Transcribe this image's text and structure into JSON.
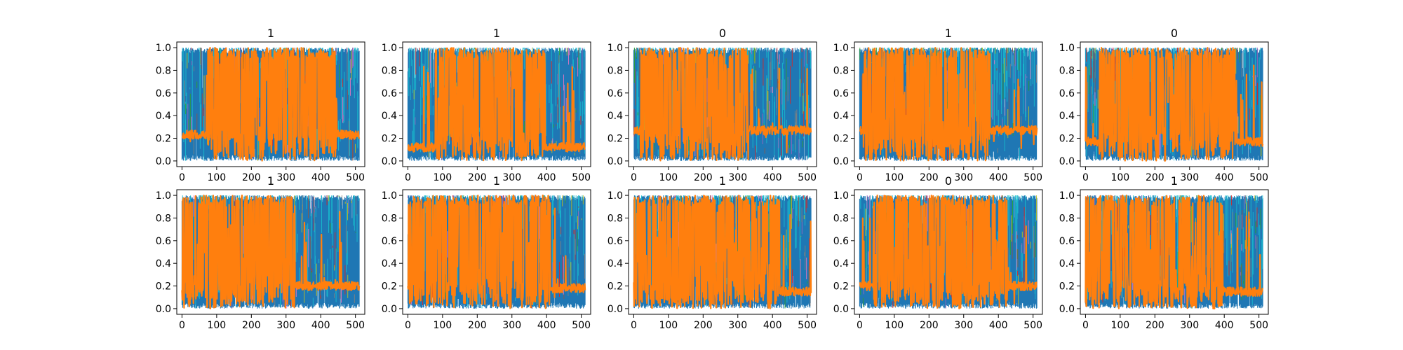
{
  "figure": {
    "colors": {
      "primary": "#1f77b4",
      "highlight": "#ff7f0e",
      "accents": [
        "#17becf",
        "#2ca02c",
        "#bcbd22",
        "#9467bd",
        "#e377c2",
        "#d62728",
        "#8c564b",
        "#7f7f7f"
      ]
    }
  },
  "chart_data": [
    {
      "type": "line",
      "title": "1",
      "xlim": [
        -15,
        527
      ],
      "ylim": [
        -0.05,
        1.05
      ],
      "xticks": [
        "0",
        "100",
        "200",
        "300",
        "400",
        "500"
      ],
      "yticks": [
        "0.0",
        "0.2",
        "0.4",
        "0.6",
        "0.8",
        "1.0"
      ],
      "series_count_estimate": 10,
      "x": [
        0,
        511
      ],
      "highlight_series": {
        "name": "",
        "dense_band": [
          75,
          445
        ],
        "baseline_level": 0.23
      }
    },
    {
      "type": "line",
      "title": "1",
      "xlim": [
        -15,
        527
      ],
      "ylim": [
        -0.05,
        1.05
      ],
      "xticks": [
        "0",
        "100",
        "200",
        "300",
        "400",
        "500"
      ],
      "yticks": [
        "0.0",
        "0.2",
        "0.4",
        "0.6",
        "0.8",
        "1.0"
      ],
      "series_count_estimate": 10,
      "x": [
        0,
        511
      ],
      "highlight_series": {
        "name": "",
        "dense_band": [
          80,
          395
        ],
        "baseline_level": 0.12
      }
    },
    {
      "type": "line",
      "title": "0",
      "xlim": [
        -15,
        527
      ],
      "ylim": [
        -0.05,
        1.05
      ],
      "xticks": [
        "0",
        "100",
        "200",
        "300",
        "400",
        "500"
      ],
      "yticks": [
        "0.0",
        "0.2",
        "0.4",
        "0.6",
        "0.8",
        "1.0"
      ],
      "series_count_estimate": 10,
      "x": [
        0,
        511
      ],
      "highlight_series": {
        "name": "",
        "dense_band": [
          20,
          330
        ],
        "baseline_level": 0.27
      }
    },
    {
      "type": "line",
      "title": "1",
      "xlim": [
        -15,
        527
      ],
      "ylim": [
        -0.05,
        1.05
      ],
      "xticks": [
        "0",
        "100",
        "200",
        "300",
        "400",
        "500"
      ],
      "yticks": [
        "0.0",
        "0.2",
        "0.4",
        "0.6",
        "0.8",
        "1.0"
      ],
      "series_count_estimate": 10,
      "x": [
        0,
        511
      ],
      "highlight_series": {
        "name": "",
        "dense_band": [
          10,
          375
        ],
        "baseline_level": 0.27
      }
    },
    {
      "type": "line",
      "title": "0",
      "xlim": [
        -15,
        527
      ],
      "ylim": [
        -0.05,
        1.05
      ],
      "xticks": [
        "0",
        "100",
        "200",
        "300",
        "400",
        "500"
      ],
      "yticks": [
        "0.0",
        "0.2",
        "0.4",
        "0.6",
        "0.8",
        "1.0"
      ],
      "series_count_estimate": 10,
      "x": [
        0,
        511
      ],
      "highlight_series": {
        "name": "",
        "dense_band": [
          40,
          430
        ],
        "baseline_level": 0.17
      }
    },
    {
      "type": "line",
      "title": "1",
      "xlim": [
        -15,
        527
      ],
      "ylim": [
        -0.05,
        1.05
      ],
      "xticks": [
        "0",
        "100",
        "200",
        "300",
        "400",
        "500"
      ],
      "yticks": [
        "0.0",
        "0.2",
        "0.4",
        "0.6",
        "0.8",
        "1.0"
      ],
      "series_count_estimate": 10,
      "x": [
        0,
        511
      ],
      "highlight_series": {
        "name": "",
        "dense_band": [
          0,
          325
        ],
        "baseline_level": 0.2
      }
    },
    {
      "type": "line",
      "title": "1",
      "xlim": [
        -15,
        527
      ],
      "ylim": [
        -0.05,
        1.05
      ],
      "xticks": [
        "0",
        "100",
        "200",
        "300",
        "400",
        "500"
      ],
      "yticks": [
        "0.0",
        "0.2",
        "0.4",
        "0.6",
        "0.8",
        "1.0"
      ],
      "series_count_estimate": 10,
      "x": [
        0,
        511
      ],
      "highlight_series": {
        "name": "",
        "dense_band": [
          0,
          410
        ],
        "baseline_level": 0.18
      }
    },
    {
      "type": "line",
      "title": "1",
      "xlim": [
        -15,
        527
      ],
      "ylim": [
        -0.05,
        1.05
      ],
      "xticks": [
        "0",
        "100",
        "200",
        "300",
        "400",
        "500"
      ],
      "yticks": [
        "0.0",
        "0.2",
        "0.4",
        "0.6",
        "0.8",
        "1.0"
      ],
      "series_count_estimate": 10,
      "x": [
        0,
        511
      ],
      "highlight_series": {
        "name": "",
        "dense_band": [
          0,
          420
        ],
        "baseline_level": 0.15
      }
    },
    {
      "type": "line",
      "title": "0",
      "xlim": [
        -15,
        527
      ],
      "ylim": [
        -0.05,
        1.05
      ],
      "xticks": [
        "0",
        "100",
        "200",
        "300",
        "400",
        "500"
      ],
      "yticks": [
        "0.0",
        "0.2",
        "0.4",
        "0.6",
        "0.8",
        "1.0"
      ],
      "series_count_estimate": 10,
      "x": [
        0,
        511
      ],
      "highlight_series": {
        "name": "",
        "dense_band": [
          40,
          425
        ],
        "baseline_level": 0.2
      }
    },
    {
      "type": "line",
      "title": "1",
      "xlim": [
        -15,
        527
      ],
      "ylim": [
        -0.05,
        1.05
      ],
      "xticks": [
        "0",
        "100",
        "200",
        "300",
        "400",
        "500"
      ],
      "yticks": [
        "0.0",
        "0.2",
        "0.4",
        "0.6",
        "0.8",
        "1.0"
      ],
      "series_count_estimate": 10,
      "x": [
        0,
        511
      ],
      "highlight_series": {
        "name": "",
        "dense_band": [
          0,
          395
        ],
        "baseline_level": 0.15
      }
    }
  ]
}
